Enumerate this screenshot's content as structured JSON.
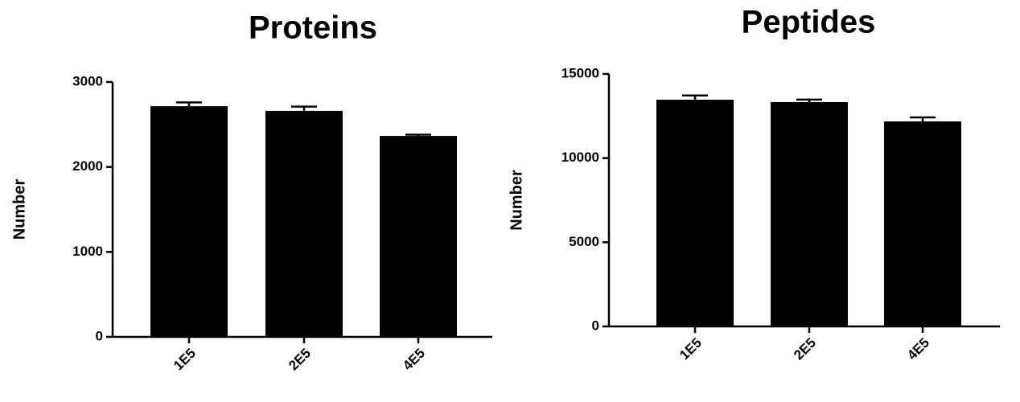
{
  "chart_data": [
    {
      "type": "bar",
      "title": "Proteins",
      "y_label": "Number",
      "categories": [
        "1E5",
        "2E5",
        "4E5"
      ],
      "values": [
        2715,
        2660,
        2365
      ],
      "errors": [
        45,
        50,
        15
      ],
      "color": "#000000",
      "ylim": [
        0,
        3000
      ],
      "yticks": [
        0,
        1000,
        2000,
        3000
      ]
    },
    {
      "type": "bar",
      "title": "Peptides",
      "y_label": "Number",
      "categories": [
        "1E5",
        "2E5",
        "4E5"
      ],
      "values": [
        13470,
        13330,
        12180
      ],
      "errors": [
        250,
        150,
        240
      ],
      "color": "#000000",
      "ylim": [
        0,
        15000
      ],
      "yticks": [
        0,
        5000,
        10000,
        15000
      ]
    }
  ]
}
